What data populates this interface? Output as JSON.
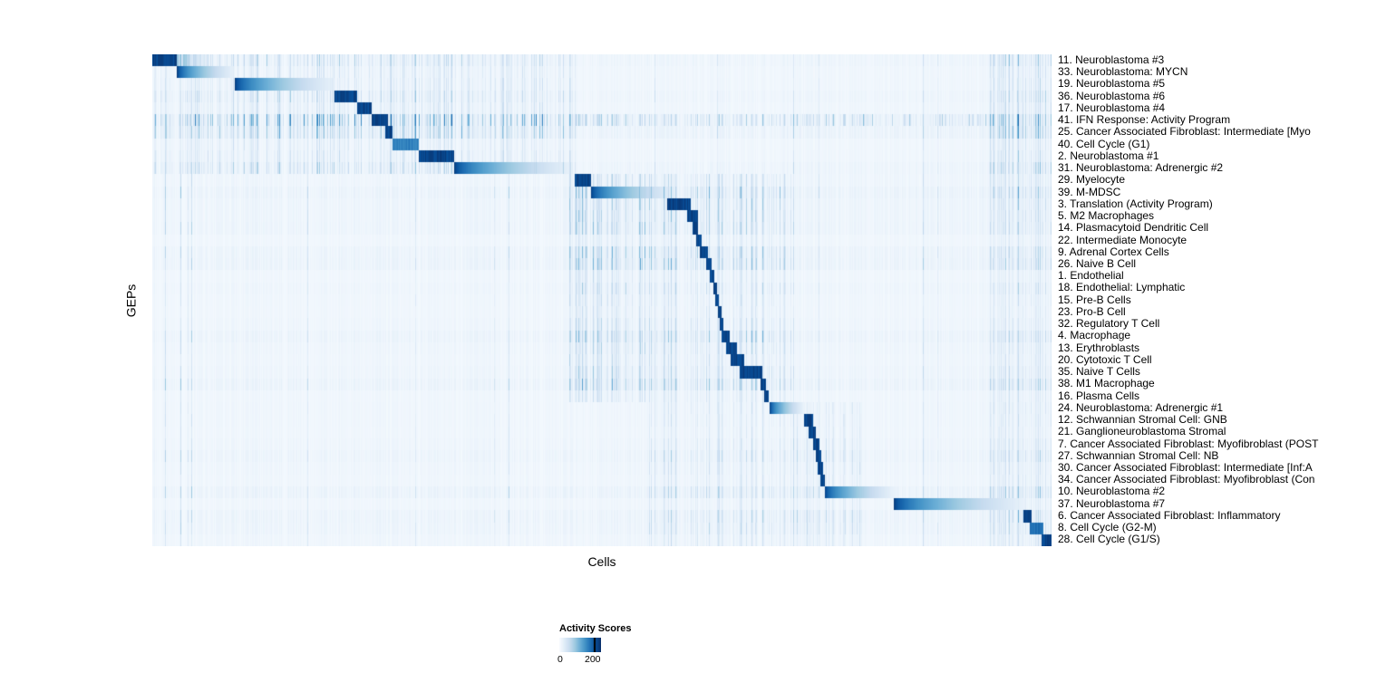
{
  "chart_data": {
    "type": "heatmap",
    "xlabel": "Cells",
    "ylabel": "GEPs",
    "legend": {
      "title": "Activity Scores",
      "ticks": [
        "0",
        "200"
      ],
      "position": "bottom"
    },
    "colormap": {
      "name": "Blues",
      "stops": [
        "#f7fbff",
        "#deebf7",
        "#c6dbef",
        "#9ecae1",
        "#6baed6",
        "#4292c6",
        "#2171b5",
        "#08519c",
        "#08306b"
      ]
    },
    "value_range": [
      0,
      200
    ],
    "rows": [
      {
        "label": "11. Neuroblastoma #3",
        "block": [
          0.0,
          0.027
        ],
        "style": "solid",
        "tail": 0.073
      },
      {
        "label": "33. Neuroblastoma: MYCN",
        "block": [
          0.027,
          0.091
        ],
        "style": "fade"
      },
      {
        "label": "19. Neuroblastoma #5",
        "block": [
          0.091,
          0.202
        ],
        "style": "fade"
      },
      {
        "label": "36. Neuroblastoma #6",
        "block": [
          0.202,
          0.227
        ],
        "style": "solid"
      },
      {
        "label": "17. Neuroblastoma #4",
        "block": [
          0.227,
          0.243
        ],
        "style": "solid"
      },
      {
        "label": "41. IFN Response: Activity Program",
        "block": [
          0.243,
          0.262
        ],
        "style": "solid"
      },
      {
        "label": "25. Cancer Associated Fibroblast: Intermediate [Myo",
        "block": [
          0.259,
          0.267
        ],
        "style": "solid"
      },
      {
        "label": "40. Cell Cycle (G1)",
        "block": [
          0.267,
          0.296
        ],
        "style": "solid",
        "intensity": 0.75
      },
      {
        "label": "2. Neuroblastoma #1",
        "block": [
          0.296,
          0.335
        ],
        "style": "solid"
      },
      {
        "label": "31. Neuroblastoma: Adrenergic #2",
        "block": [
          0.335,
          0.466
        ],
        "style": "fade"
      },
      {
        "label": "29. Myelocyte",
        "block": [
          0.469,
          0.487
        ],
        "style": "solid"
      },
      {
        "label": "39. M-MDSC",
        "block": [
          0.487,
          0.582
        ],
        "style": "fade"
      },
      {
        "label": "3. Translation (Activity Program)",
        "block": [
          0.572,
          0.598
        ],
        "style": "solid"
      },
      {
        "label": "5. M2 Macrophages",
        "block": [
          0.594,
          0.606
        ],
        "style": "solid"
      },
      {
        "label": "14. Plasmacytoid Dendritic Cell",
        "block": [
          0.6,
          0.606
        ],
        "style": "solid"
      },
      {
        "label": "22. Intermediate Monocyte",
        "block": [
          0.604,
          0.61
        ],
        "style": "solid"
      },
      {
        "label": "9. Adrenal Cortex Cells",
        "block": [
          0.608,
          0.617
        ],
        "style": "solid"
      },
      {
        "label": "26. Naive B Cell",
        "block": [
          0.615,
          0.621
        ],
        "style": "solid"
      },
      {
        "label": "1. Endothelial",
        "block": [
          0.619,
          0.625
        ],
        "style": "solid"
      },
      {
        "label": "18. Endothelial: Lymphatic",
        "block": [
          0.623,
          0.628
        ],
        "style": "solid"
      },
      {
        "label": "15. Pre-B Cells",
        "block": [
          0.626,
          0.63
        ],
        "style": "solid"
      },
      {
        "label": "23. Pro-B Cell",
        "block": [
          0.629,
          0.633
        ],
        "style": "solid"
      },
      {
        "label": "32. Regulatory T Cell",
        "block": [
          0.631,
          0.635
        ],
        "style": "solid"
      },
      {
        "label": "4. Macrophage",
        "block": [
          0.633,
          0.642
        ],
        "style": "solid"
      },
      {
        "label": "13. Erythroblasts",
        "block": [
          0.638,
          0.65
        ],
        "style": "solid"
      },
      {
        "label": "20. Cytotoxic T Cell",
        "block": [
          0.643,
          0.658
        ],
        "style": "solid"
      },
      {
        "label": "35. Naive T Cells",
        "block": [
          0.653,
          0.678
        ],
        "style": "solid"
      },
      {
        "label": "38. M1 Macrophage",
        "block": [
          0.676,
          0.682
        ],
        "style": "solid"
      },
      {
        "label": "16. Plasma Cells",
        "block": [
          0.68,
          0.685
        ],
        "style": "solid"
      },
      {
        "label": "24. Neuroblastoma: Adrenergic #1",
        "block": [
          0.686,
          0.724
        ],
        "style": "fade"
      },
      {
        "label": "12. Schwannian Stromal Cell: GNB",
        "block": [
          0.724,
          0.734
        ],
        "style": "solid"
      },
      {
        "label": "21. Ganglioneuroblastoma Stromal",
        "block": [
          0.729,
          0.737
        ],
        "style": "solid"
      },
      {
        "label": "7. Cancer Associated Fibroblast: Myofibroblast (POST",
        "block": [
          0.734,
          0.741
        ],
        "style": "solid"
      },
      {
        "label": "27. Schwannian Stromal Cell: NB",
        "block": [
          0.737,
          0.743
        ],
        "style": "solid"
      },
      {
        "label": "30. Cancer Associated Fibroblast: Intermediate [Inf:A",
        "block": [
          0.739,
          0.745
        ],
        "style": "solid"
      },
      {
        "label": "34. Cancer Associated Fibroblast: Myofibroblast (Con",
        "block": [
          0.742,
          0.747
        ],
        "style": "solid"
      },
      {
        "label": "10. Neuroblastoma #2",
        "block": [
          0.747,
          0.824
        ],
        "style": "fade"
      },
      {
        "label": "37. Neuroblastoma #7",
        "block": [
          0.824,
          0.97
        ],
        "style": "fade"
      },
      {
        "label": "6. Cancer Associated Fibroblast: Inflammatory",
        "block": [
          0.968,
          0.977
        ],
        "style": "solid"
      },
      {
        "label": "8. Cell Cycle (G2-M)",
        "block": [
          0.975,
          0.99
        ],
        "style": "solid",
        "intensity": 0.8
      },
      {
        "label": "28. Cell Cycle (G1/S)",
        "block": [
          0.988,
          1.0
        ],
        "style": "solid"
      }
    ]
  }
}
